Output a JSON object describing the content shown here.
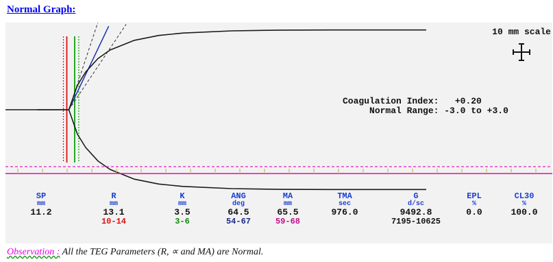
{
  "heading": "Normal Graph:",
  "scale_label": "10 mm scale",
  "coagulation": {
    "index_label": "Coagulation Index:",
    "index_value": "+0.20",
    "range_label": "Normal Range:",
    "range_value": "-3.0 to +3.0"
  },
  "parameters": [
    {
      "name": "SP",
      "unit": "mm",
      "value": "11.2",
      "range": "",
      "range_color": "#111111"
    },
    {
      "name": "R",
      "unit": "mm",
      "value": "13.1",
      "range": "10-14",
      "range_color": "#d81010"
    },
    {
      "name": "K",
      "unit": "mm",
      "value": "3.5",
      "range": "3-6",
      "range_color": "#108a10"
    },
    {
      "name": "ANG",
      "unit": "deg",
      "value": "64.5",
      "range": "54-67",
      "range_color": "#1a2a8a"
    },
    {
      "name": "MA",
      "unit": "mm",
      "value": "65.5",
      "range": "59-68",
      "range_color": "#c0108a"
    },
    {
      "name": "TMA",
      "unit": "sec",
      "value": "976.0",
      "range": "",
      "range_color": "#111111"
    },
    {
      "name": "G",
      "unit": "d/sc",
      "value": "9492.8",
      "range": "7195-10625",
      "range_color": "#111111"
    },
    {
      "name": "EPL",
      "unit": "%",
      "value": "0.0",
      "range": "",
      "range_color": "#111111"
    },
    {
      "name": "CL30",
      "unit": "%",
      "value": "100.0",
      "range": "",
      "range_color": "#111111"
    }
  ],
  "observation": {
    "label": "Observation :",
    "text": "All the TEG Parameters (R, ∝ and MA) are Normal."
  },
  "colors": {
    "trace": "#1a1a1a",
    "r_marker": "#e01010",
    "k_marker": "#10a010",
    "angle_line": "#1a2fb0",
    "baseline_dash": "#e020c0",
    "baseline_solid": "#e010a0"
  },
  "chart_data": {
    "type": "line",
    "title": "",
    "xlabel": "",
    "ylabel": "",
    "r_value_mm": 13.1,
    "k_value_mm": 3.5,
    "angle_deg": 64.5,
    "ma_mm": 65.5,
    "trace": {
      "time_mm": [
        0,
        13.1,
        16.6,
        20,
        25,
        30,
        40,
        50,
        60,
        80,
        100,
        120,
        140,
        160
      ],
      "half_amplitude_mm": [
        0,
        0,
        10,
        15.5,
        21,
        24.5,
        28.5,
        30.5,
        31.5,
        32.4,
        32.7,
        32.75,
        32.75,
        32.75
      ]
    },
    "grid": false,
    "legend": "none"
  }
}
